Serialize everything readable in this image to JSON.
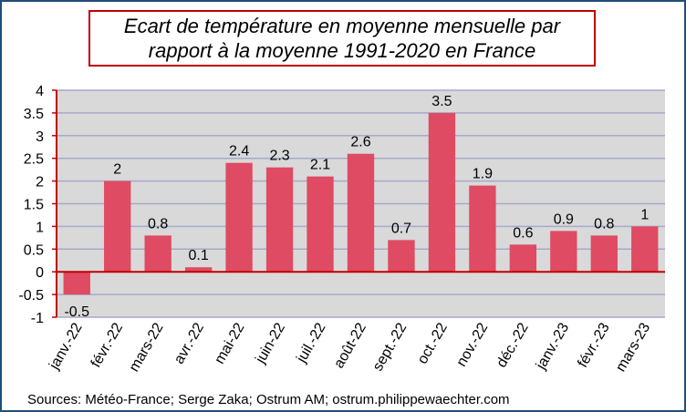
{
  "chart_data": {
    "type": "bar",
    "title_lines": [
      "Ecart de température en moyenne mensuelle par",
      "rapport à la moyenne 1991-2020 en France"
    ],
    "categories": [
      "janv.-22",
      "févr.-22",
      "mars-22",
      "avr.-22",
      "mai-22",
      "juin-22",
      "juil.-22",
      "août-22",
      "sept.-22",
      "oct.-22",
      "nov.-22",
      "déc.-22",
      "janv.-23",
      "févr.-23",
      "mars-23"
    ],
    "values": [
      -0.5,
      2,
      0.8,
      0.1,
      2.4,
      2.3,
      2.1,
      2.6,
      0.7,
      3.5,
      1.9,
      0.6,
      0.9,
      0.8,
      1
    ],
    "value_labels": [
      "-0.5",
      "2",
      "0.8",
      "0.1",
      "2.4",
      "2.3",
      "2.1",
      "2.6",
      "0.7",
      "3.5",
      "1.9",
      "0.6",
      "0.9",
      "0.8",
      "1"
    ],
    "y_ticks": [
      "-1",
      "-0.5",
      "0",
      "0.5",
      "1",
      "1.5",
      "2",
      "2.5",
      "3",
      "3.5",
      "4"
    ],
    "ylim": [
      -1,
      4
    ],
    "xlabel": "",
    "ylabel": "",
    "grid": true,
    "legend": "none",
    "colors": {
      "bar": "#de4b63",
      "plot_background": "#d9d9d9",
      "gridline": "#a6a9c9",
      "title_border": "#c00000",
      "frame_border": "#1f4e79"
    }
  },
  "source_text": "Sources: Météo-France;  Serge Zaka;  Ostrum  AM; ostrum.philippewaechter.com"
}
